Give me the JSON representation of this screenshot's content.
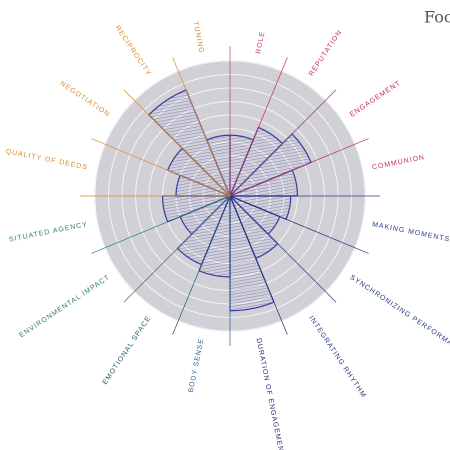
{
  "chart_data": {
    "type": "polar",
    "note_text": "Foo",
    "categories": [
      "TUNING",
      "ROLE",
      "REPUTATION",
      "ENGAGEMENT",
      "COMMUNION",
      "MAKING MOMENTS TO I",
      "SYNCHRONIZING PERFORMANCE",
      "INTEGRATING RHYTHM",
      "DURATION OF ENGAGEMENT",
      "BODY SENSE",
      "EMOTIONAL SPACE",
      "ENVIRONMENTAL IMPACT",
      "SITUATED AGENCY",
      "QUALITY OF DEEDS",
      "NEGOTIATION",
      "RECIPROCITY"
    ],
    "label_colors": [
      "#d98a2b",
      "#d0405a",
      "#c8304a",
      "#c02850",
      "#c0306a",
      "#2a3e8a",
      "#23367a",
      "#2a3a80",
      "#22306e",
      "#2a6090",
      "#1e5a6a",
      "#2a7a6a",
      "#2a8070",
      "#d98a2b",
      "#d98a2b",
      "#d98a2b"
    ],
    "values": [
      4.5,
      4.5,
      5.5,
      6.5,
      5,
      4.5,
      4,
      5,
      8.5,
      6,
      5.5,
      4,
      5,
      4,
      5,
      8.5
    ],
    "color": "#3a3aa0",
    "rlim": [
      0,
      10
    ],
    "rticks": [
      1,
      2,
      3,
      4,
      5,
      6,
      7,
      8,
      9,
      10
    ]
  }
}
